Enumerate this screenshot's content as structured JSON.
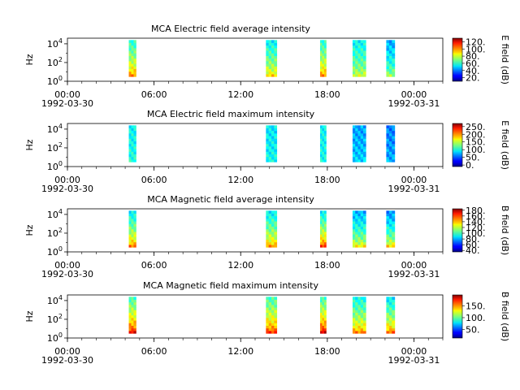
{
  "chart_data": [
    {
      "type": "heatmap",
      "title": "MCA  Electric field average intensity",
      "ylabel": "Hz",
      "colorbar_label": "E field (dB)",
      "colorbar_ticks": [
        "20.",
        "40.",
        "60.",
        "80.",
        "100.",
        "120."
      ],
      "colorbar_range": [
        10,
        130
      ],
      "yticks": [
        "10^0",
        "10^2",
        "10^4"
      ],
      "ylim_log10": [
        0,
        4.6
      ],
      "blocks": [
        {
          "start": "04:15",
          "end": "04:45",
          "base_db": 60,
          "low_db": 100,
          "bottom_log10": 0.5,
          "top_log10": 4.4
        },
        {
          "start": "13:45",
          "end": "14:30",
          "base_db": 55,
          "low_db": 90,
          "bottom_log10": 0.5,
          "top_log10": 4.4
        },
        {
          "start": "17:30",
          "end": "17:55",
          "base_db": 60,
          "low_db": 100,
          "bottom_log10": 0.5,
          "top_log10": 4.4
        },
        {
          "start": "19:45",
          "end": "20:40",
          "base_db": 55,
          "low_db": 80,
          "bottom_log10": 0.5,
          "top_log10": 4.4
        },
        {
          "start": "22:05",
          "end": "22:40",
          "base_db": 45,
          "low_db": 75,
          "bottom_log10": 0.5,
          "top_log10": 4.4
        }
      ]
    },
    {
      "type": "heatmap",
      "title": "MCA  Electric field maximum intensity",
      "ylabel": "Hz",
      "colorbar_label": "E field (dB)",
      "colorbar_ticks": [
        "0.",
        "50.",
        "100.",
        "150.",
        "200.",
        "250."
      ],
      "colorbar_range": [
        -10,
        270
      ],
      "yticks": [
        "10^0",
        "10^2",
        "10^4"
      ],
      "ylim_log10": [
        0,
        4.6
      ],
      "blocks": [
        {
          "start": "04:15",
          "end": "04:45",
          "base_db": 95,
          "low_db": 105,
          "bottom_log10": 0.5,
          "top_log10": 4.4
        },
        {
          "start": "13:45",
          "end": "14:30",
          "base_db": 90,
          "low_db": 100,
          "bottom_log10": 0.5,
          "top_log10": 4.4
        },
        {
          "start": "17:30",
          "end": "17:55",
          "base_db": 95,
          "low_db": 100,
          "bottom_log10": 0.5,
          "top_log10": 4.4
        },
        {
          "start": "19:45",
          "end": "20:40",
          "base_db": 70,
          "low_db": 85,
          "bottom_log10": 0.5,
          "top_log10": 4.4
        },
        {
          "start": "22:05",
          "end": "22:40",
          "base_db": 60,
          "low_db": 75,
          "bottom_log10": 0.5,
          "top_log10": 4.4
        }
      ]
    },
    {
      "type": "heatmap",
      "title": "MCA  Magnetic field average intensity",
      "ylabel": "Hz",
      "colorbar_label": "B field (dB)",
      "colorbar_ticks": [
        "40.",
        "60.",
        "80.",
        "100.",
        "120.",
        "140.",
        "160.",
        "180."
      ],
      "colorbar_range": [
        35,
        185
      ],
      "yticks": [
        "10^0",
        "10^2",
        "10^4"
      ],
      "ylim_log10": [
        0,
        4.6
      ],
      "blocks": [
        {
          "start": "04:15",
          "end": "04:45",
          "base_db": 90,
          "low_db": 150,
          "bottom_log10": 0.5,
          "top_log10": 4.4
        },
        {
          "start": "13:45",
          "end": "14:30",
          "base_db": 90,
          "low_db": 145,
          "bottom_log10": 0.5,
          "top_log10": 4.4
        },
        {
          "start": "17:30",
          "end": "17:55",
          "base_db": 90,
          "low_db": 160,
          "bottom_log10": 0.5,
          "top_log10": 4.4
        },
        {
          "start": "19:45",
          "end": "20:40",
          "base_db": 80,
          "low_db": 130,
          "bottom_log10": 0.5,
          "top_log10": 4.4
        },
        {
          "start": "22:05",
          "end": "22:40",
          "base_db": 75,
          "low_db": 135,
          "bottom_log10": 0.5,
          "top_log10": 4.4
        }
      ]
    },
    {
      "type": "heatmap",
      "title": "MCA  Magnetic field maximum intensity",
      "ylabel": "Hz",
      "colorbar_label": "B field (dB)",
      "colorbar_ticks": [
        "50.",
        "100.",
        "150."
      ],
      "colorbar_range": [
        15,
        195
      ],
      "yticks": [
        "10^0",
        "10^2",
        "10^4"
      ],
      "ylim_log10": [
        0,
        4.6
      ],
      "blocks": [
        {
          "start": "04:15",
          "end": "04:45",
          "base_db": 95,
          "low_db": 175,
          "bottom_log10": 0.5,
          "top_log10": 4.4
        },
        {
          "start": "13:45",
          "end": "14:30",
          "base_db": 95,
          "low_db": 165,
          "bottom_log10": 0.5,
          "top_log10": 4.4
        },
        {
          "start": "17:30",
          "end": "17:55",
          "base_db": 95,
          "low_db": 180,
          "bottom_log10": 0.5,
          "top_log10": 4.4
        },
        {
          "start": "19:45",
          "end": "20:40",
          "base_db": 85,
          "low_db": 150,
          "bottom_log10": 0.5,
          "top_log10": 4.4
        },
        {
          "start": "22:05",
          "end": "22:40",
          "base_db": 80,
          "low_db": 155,
          "bottom_log10": 0.5,
          "top_log10": 4.4
        }
      ]
    }
  ],
  "x_axis": {
    "range_hours": [
      0,
      26
    ],
    "tick_labels": [
      {
        "hour": 0,
        "time": "00:00",
        "date": "1992-03-30"
      },
      {
        "hour": 6,
        "time": "06:00",
        "date": ""
      },
      {
        "hour": 12,
        "time": "12:00",
        "date": ""
      },
      {
        "hour": 18,
        "time": "18:00",
        "date": ""
      },
      {
        "hour": 24,
        "time": "00:00",
        "date": "1992-03-31"
      }
    ],
    "minor_tick_hours": 1
  }
}
